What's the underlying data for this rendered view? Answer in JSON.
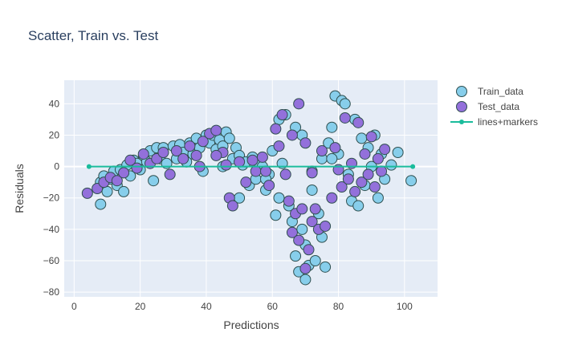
{
  "chart_data": {
    "type": "scatter",
    "title": "Scatter, Train vs. Test",
    "xlabel": "Predictions",
    "ylabel": "Residuals",
    "xlim": [
      -3,
      110
    ],
    "ylim": [
      -83,
      55
    ],
    "x_ticks": [
      0,
      20,
      40,
      60,
      80,
      100
    ],
    "y_ticks": [
      -80,
      -60,
      -40,
      -20,
      0,
      20,
      40
    ],
    "x_tick_labels": [
      "0",
      "20",
      "40",
      "60",
      "80",
      "100"
    ],
    "y_tick_labels": [
      "−80",
      "−60",
      "−40",
      "−20",
      "0",
      "20",
      "40"
    ],
    "grid": true,
    "legend_position": "top-right",
    "colors": {
      "train": "#87CEEB",
      "test": "#9370DB",
      "marker_outline": "#2F4F4F",
      "line": "#1ABC9C",
      "plot_bg": "#E5ECF6",
      "text": "#444444",
      "title": "#2A3F5F"
    },
    "legend": [
      {
        "name": "Train_data",
        "kind": "marker",
        "color": "#87CEEB"
      },
      {
        "name": "Test_data",
        "kind": "marker",
        "color": "#9370DB"
      },
      {
        "name": "lines+markers",
        "kind": "line",
        "color": "#1ABC9C"
      }
    ],
    "series": [
      {
        "name": "Train_data",
        "points": [
          [
            8,
            -10
          ],
          [
            8,
            -24
          ],
          [
            9,
            -6
          ],
          [
            10,
            -16
          ],
          [
            11,
            -8
          ],
          [
            12,
            -3
          ],
          [
            13,
            -12
          ],
          [
            14,
            -2
          ],
          [
            15,
            -16
          ],
          [
            16,
            1
          ],
          [
            17,
            -6
          ],
          [
            18,
            4
          ],
          [
            19,
            2
          ],
          [
            20,
            -2
          ],
          [
            21,
            7
          ],
          [
            22,
            3
          ],
          [
            23,
            10
          ],
          [
            24,
            -9
          ],
          [
            25,
            12
          ],
          [
            26,
            5
          ],
          [
            27,
            12
          ],
          [
            28,
            2
          ],
          [
            30,
            13
          ],
          [
            31,
            5
          ],
          [
            32,
            14
          ],
          [
            33,
            9
          ],
          [
            34,
            3
          ],
          [
            35,
            15
          ],
          [
            36,
            8
          ],
          [
            37,
            18
          ],
          [
            38,
            12
          ],
          [
            39,
            -3
          ],
          [
            40,
            20
          ],
          [
            41,
            15
          ],
          [
            42,
            20
          ],
          [
            43,
            11
          ],
          [
            44,
            17
          ],
          [
            45,
            13
          ],
          [
            46,
            22
          ],
          [
            47,
            18
          ],
          [
            48,
            5
          ],
          [
            49,
            12
          ],
          [
            50,
            7
          ],
          [
            51,
            1
          ],
          [
            52,
            3
          ],
          [
            53,
            -12
          ],
          [
            54,
            6
          ],
          [
            55,
            -8
          ],
          [
            56,
            2
          ],
          [
            57,
            0
          ],
          [
            58,
            -15
          ],
          [
            59,
            -5
          ],
          [
            60,
            10
          ],
          [
            61,
            -31
          ],
          [
            62,
            30
          ],
          [
            63,
            2
          ],
          [
            64,
            33
          ],
          [
            65,
            -25
          ],
          [
            66,
            -35
          ],
          [
            67,
            -57
          ],
          [
            67,
            25
          ],
          [
            68,
            -67
          ],
          [
            69,
            -40
          ],
          [
            69,
            20
          ],
          [
            70,
            -72
          ],
          [
            70,
            -50
          ],
          [
            71,
            -63
          ],
          [
            72,
            -15
          ],
          [
            73,
            -60
          ],
          [
            74,
            -30
          ],
          [
            75,
            -45
          ],
          [
            75,
            5
          ],
          [
            76,
            -64
          ],
          [
            77,
            15
          ],
          [
            78,
            25
          ],
          [
            79,
            45
          ],
          [
            80,
            8
          ],
          [
            81,
            42
          ],
          [
            82,
            40
          ],
          [
            83,
            -5
          ],
          [
            84,
            -22
          ],
          [
            85,
            30
          ],
          [
            86,
            -25
          ],
          [
            87,
            18
          ],
          [
            88,
            -12
          ],
          [
            89,
            12
          ],
          [
            90,
            0
          ],
          [
            91,
            20
          ],
          [
            92,
            -20
          ],
          [
            93,
            8
          ],
          [
            94,
            -8
          ],
          [
            96,
            1
          ],
          [
            98,
            9
          ],
          [
            102,
            -9
          ],
          [
            45,
            0
          ],
          [
            50,
            -20
          ],
          [
            58,
            -8
          ],
          [
            62,
            -20
          ],
          [
            72,
            -3
          ],
          [
            78,
            5
          ]
        ]
      },
      {
        "name": "Test_data",
        "points": [
          [
            4,
            -17
          ],
          [
            7,
            -14
          ],
          [
            9,
            -10
          ],
          [
            11,
            -7
          ],
          [
            13,
            -9
          ],
          [
            15,
            -4
          ],
          [
            17,
            4
          ],
          [
            19,
            -1
          ],
          [
            21,
            8
          ],
          [
            23,
            2
          ],
          [
            25,
            5
          ],
          [
            27,
            9
          ],
          [
            29,
            -5
          ],
          [
            31,
            10
          ],
          [
            33,
            5
          ],
          [
            35,
            13
          ],
          [
            37,
            7
          ],
          [
            39,
            16
          ],
          [
            41,
            21
          ],
          [
            43,
            23
          ],
          [
            45,
            9
          ],
          [
            46,
            1
          ],
          [
            47,
            -20
          ],
          [
            48,
            -25
          ],
          [
            50,
            3
          ],
          [
            52,
            -10
          ],
          [
            54,
            4
          ],
          [
            55,
            -3
          ],
          [
            57,
            6
          ],
          [
            59,
            -12
          ],
          [
            61,
            24
          ],
          [
            63,
            33
          ],
          [
            64,
            -5
          ],
          [
            65,
            -22
          ],
          [
            66,
            -42
          ],
          [
            67,
            -30
          ],
          [
            68,
            40
          ],
          [
            68,
            -47
          ],
          [
            69,
            -27
          ],
          [
            70,
            -65
          ],
          [
            71,
            -53
          ],
          [
            72,
            -35
          ],
          [
            73,
            -27
          ],
          [
            74,
            -40
          ],
          [
            76,
            -38
          ],
          [
            78,
            -20
          ],
          [
            79,
            12
          ],
          [
            80,
            -2
          ],
          [
            81,
            -13
          ],
          [
            82,
            31
          ],
          [
            83,
            -8
          ],
          [
            84,
            2
          ],
          [
            85,
            -16
          ],
          [
            86,
            28
          ],
          [
            87,
            -10
          ],
          [
            88,
            8
          ],
          [
            89,
            -5
          ],
          [
            90,
            19
          ],
          [
            91,
            -13
          ],
          [
            92,
            5
          ],
          [
            93,
            -3
          ],
          [
            94,
            11
          ],
          [
            43,
            7
          ],
          [
            38,
            0
          ],
          [
            58,
            -3
          ],
          [
            62,
            13
          ],
          [
            66,
            20
          ],
          [
            70,
            15
          ],
          [
            75,
            10
          ],
          [
            72,
            -4
          ]
        ]
      },
      {
        "name": "lines+markers",
        "points": [
          [
            4.5,
            0
          ],
          [
            102.5,
            0
          ]
        ]
      }
    ]
  }
}
